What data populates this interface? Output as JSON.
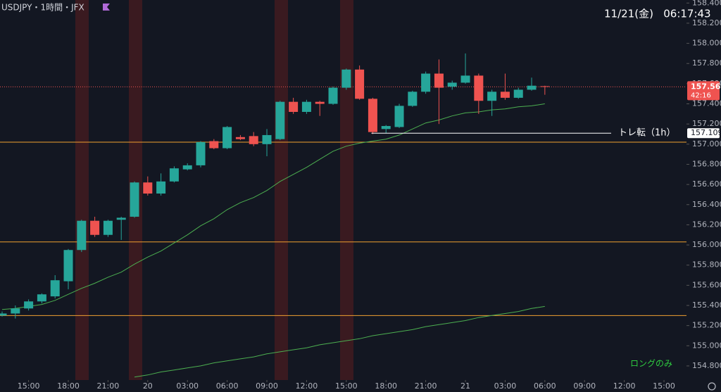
{
  "chart_data": {
    "type": "candlestick",
    "title": "USDJPY・1時間・JFX",
    "clock": "11/21(金)   06:17:43",
    "countdown": "42:16",
    "background": "#131722",
    "up_color": "#26a69a",
    "down_color": "#ef5350",
    "open": [
      155.3,
      155.32,
      155.37,
      155.44,
      155.49,
      155.64,
      155.95,
      156.24,
      156.1,
      156.25,
      156.28,
      156.62,
      156.51,
      156.63,
      156.75,
      156.79,
      157.03,
      156.96,
      157.07,
      157.08,
      157.0,
      157.05,
      157.42,
      157.32,
      157.42,
      157.4,
      157.56,
      157.74,
      157.45,
      157.15,
      157.17,
      157.38,
      157.52,
      157.7,
      157.57,
      157.61,
      157.68,
      157.43,
      157.52,
      157.46,
      157.54,
      157.575
    ],
    "high": [
      155.34,
      155.4,
      155.46,
      155.52,
      155.7,
      155.96,
      156.25,
      156.28,
      156.25,
      156.28,
      156.63,
      156.68,
      156.71,
      156.78,
      156.81,
      157.03,
      157.05,
      157.18,
      157.09,
      157.12,
      157.15,
      157.43,
      157.46,
      157.44,
      157.43,
      157.57,
      157.75,
      157.78,
      157.46,
      157.19,
      157.4,
      157.53,
      157.72,
      157.84,
      157.63,
      157.9,
      157.7,
      157.54,
      157.7,
      157.56,
      157.66,
      157.58
    ],
    "low": [
      155.29,
      155.27,
      155.35,
      155.42,
      155.47,
      155.56,
      155.93,
      156.08,
      156.08,
      156.05,
      156.27,
      156.49,
      156.49,
      156.62,
      156.74,
      156.77,
      156.95,
      156.95,
      157.04,
      156.98,
      156.88,
      157.04,
      157.3,
      157.3,
      157.28,
      157.39,
      157.54,
      157.44,
      157.1,
      157.11,
      157.16,
      157.37,
      157.5,
      157.2,
      157.54,
      157.6,
      157.3,
      157.28,
      157.44,
      157.45,
      157.53,
      157.49
    ],
    "close": [
      155.32,
      155.37,
      155.44,
      155.51,
      155.65,
      155.95,
      156.24,
      156.1,
      156.24,
      156.27,
      156.62,
      156.51,
      156.63,
      156.76,
      156.79,
      157.02,
      156.96,
      157.17,
      157.05,
      157.0,
      157.09,
      157.42,
      157.32,
      157.42,
      157.4,
      157.56,
      157.74,
      157.45,
      157.12,
      157.18,
      157.38,
      157.52,
      157.7,
      157.56,
      157.61,
      157.68,
      157.43,
      157.52,
      157.46,
      157.54,
      157.58,
      157.569
    ],
    "moving_averages": [
      {
        "color": "#4caf50",
        "values": [
          155.36,
          155.37,
          155.39,
          155.41,
          155.45,
          155.51,
          155.57,
          155.62,
          155.68,
          155.73,
          155.81,
          155.88,
          155.94,
          156.02,
          156.1,
          156.19,
          156.26,
          156.35,
          156.42,
          156.47,
          156.54,
          156.63,
          156.7,
          156.77,
          156.85,
          156.93,
          156.98,
          157.01,
          157.03,
          157.05,
          157.09,
          157.15,
          157.21,
          157.24,
          157.28,
          157.31,
          157.32,
          157.34,
          157.35,
          157.37,
          157.38,
          157.4
        ]
      },
      {
        "color": "#4caf50",
        "values": [
          null,
          null,
          null,
          null,
          null,
          null,
          null,
          null,
          null,
          null,
          154.69,
          154.71,
          154.74,
          154.76,
          154.78,
          154.8,
          154.83,
          154.85,
          154.87,
          154.89,
          154.92,
          154.94,
          154.96,
          154.98,
          155.01,
          155.03,
          155.05,
          155.07,
          155.1,
          155.12,
          155.14,
          155.16,
          155.19,
          155.21,
          155.23,
          155.25,
          155.28,
          155.3,
          155.32,
          155.34,
          155.37,
          155.39
        ]
      }
    ],
    "hlines": [
      {
        "value": 157.02,
        "color": "#f0a030"
      },
      {
        "value": 156.03,
        "color": "#f0a030"
      },
      {
        "value": 155.3,
        "color": "#f0a030"
      }
    ],
    "trend_line": {
      "value": 157.109,
      "label": "トレ転（1h）",
      "color": "#ffffff"
    },
    "note": "ロングのみ",
    "note_color": "#2ecc40",
    "xlim": [
      -0.16,
      51.7
    ],
    "ylim": [
      154.66,
      158.43
    ],
    "xticks": [
      {
        "value": 2,
        "label": "15:00"
      },
      {
        "value": 5,
        "label": "18:00"
      },
      {
        "value": 8,
        "label": "21:00"
      },
      {
        "value": 11,
        "label": "20"
      },
      {
        "value": 14,
        "label": "03:00"
      },
      {
        "value": 17,
        "label": "06:00"
      },
      {
        "value": 20,
        "label": "09:00"
      },
      {
        "value": 23,
        "label": "12:00"
      },
      {
        "value": 26,
        "label": "15:00"
      },
      {
        "value": 29,
        "label": "18:00"
      },
      {
        "value": 32,
        "label": "21:00"
      },
      {
        "value": 35,
        "label": "21"
      },
      {
        "value": 38,
        "label": "03:00"
      },
      {
        "value": 41,
        "label": "06:00"
      },
      {
        "value": 44,
        "label": "09:00"
      },
      {
        "value": 47,
        "label": "12:00"
      },
      {
        "value": 50,
        "label": "15:00"
      }
    ],
    "yticks": [
      {
        "value": 154.8,
        "label": "154.800"
      },
      {
        "value": 155.0,
        "label": "155.000"
      },
      {
        "value": 155.2,
        "label": "155.200"
      },
      {
        "value": 155.4,
        "label": "155.400"
      },
      {
        "value": 155.6,
        "label": "155.600"
      },
      {
        "value": 155.8,
        "label": "155.800"
      },
      {
        "value": 156.0,
        "label": "156.000"
      },
      {
        "value": 156.2,
        "label": "156.200"
      },
      {
        "value": 156.4,
        "label": "156.400"
      },
      {
        "value": 156.6,
        "label": "156.600"
      },
      {
        "value": 156.8,
        "label": "156.800"
      },
      {
        "value": 157.0,
        "label": "157.000"
      },
      {
        "value": 157.2,
        "label": "157.200"
      },
      {
        "value": 157.4,
        "label": "157.400"
      },
      {
        "value": 157.6,
        "label": "157.600"
      },
      {
        "value": 157.8,
        "label": "157.800"
      },
      {
        "value": 158.0,
        "label": "158.000"
      },
      {
        "value": 158.2,
        "label": "158.200"
      },
      {
        "value": 158.4,
        "label": "158.400"
      }
    ]
  }
}
